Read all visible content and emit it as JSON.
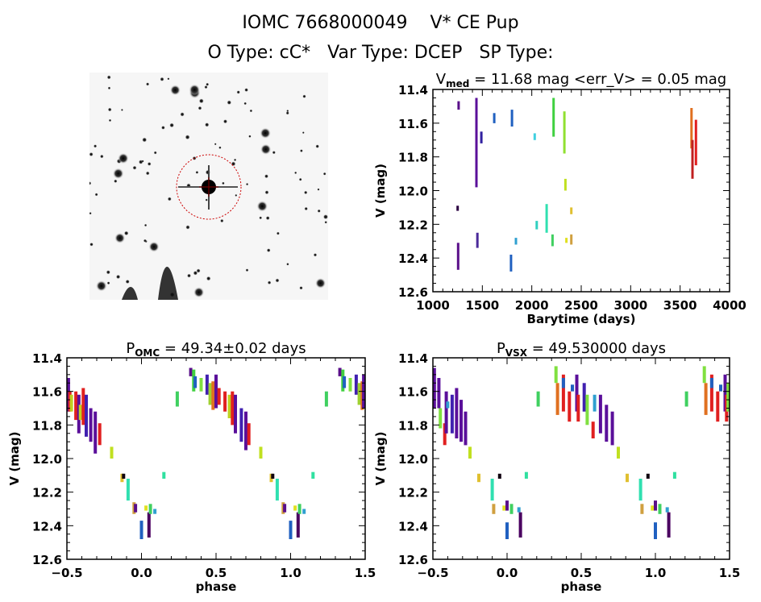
{
  "header": {
    "title": "IOMC 7668000049    V* CE Pup",
    "subtitle": "O Type: cC*   Var Type: DCEP   SP Type:"
  },
  "thumbnail": {
    "description": "inverted grayscale sky image with target circled",
    "circle_color": "#cc0000"
  },
  "chart_data": [
    {
      "type": "scatter",
      "title_main": "V",
      "title_sub": "med",
      "title_rest": " = 11.68 mag <err_V> = 0.05 mag",
      "xlabel": "Barytime (days)",
      "ylabel": "V (mag)",
      "xlim": [
        1000,
        4000
      ],
      "ylim": [
        12.6,
        11.4
      ],
      "xticks": [
        "1000",
        "1500",
        "2000",
        "2500",
        "3000",
        "3500",
        "4000"
      ],
      "yticks": [
        "11.4",
        "11.6",
        "11.8",
        "12.0",
        "12.2",
        "12.4",
        "12.6"
      ],
      "segments": [
        {
          "x": 1260,
          "y0": 11.47,
          "y1": 11.52,
          "color": "#5a0f8a"
        },
        {
          "x": 1250,
          "y0": 12.09,
          "y1": 12.12,
          "color": "#2a0040"
        },
        {
          "x": 1255,
          "y0": 12.31,
          "y1": 12.47,
          "color": "#5a0f8a"
        },
        {
          "x": 1440,
          "y0": 11.45,
          "y1": 11.98,
          "color": "#5a0f9a"
        },
        {
          "x": 1450,
          "y0": 12.25,
          "y1": 12.34,
          "color": "#4b2a9a"
        },
        {
          "x": 1490,
          "y0": 11.65,
          "y1": 11.72,
          "color": "#3020a0"
        },
        {
          "x": 1620,
          "y0": 11.54,
          "y1": 11.6,
          "color": "#2060c0"
        },
        {
          "x": 1800,
          "y0": 11.52,
          "y1": 11.62,
          "color": "#2060c0"
        },
        {
          "x": 1790,
          "y0": 12.38,
          "y1": 12.48,
          "color": "#2060c0"
        },
        {
          "x": 1840,
          "y0": 12.28,
          "y1": 12.32,
          "color": "#30a0d0"
        },
        {
          "x": 2030,
          "y0": 11.66,
          "y1": 11.7,
          "color": "#40d0e0"
        },
        {
          "x": 2050,
          "y0": 12.18,
          "y1": 12.23,
          "color": "#30d0c0"
        },
        {
          "x": 2150,
          "y0": 12.08,
          "y1": 12.25,
          "color": "#30e0b0"
        },
        {
          "x": 2220,
          "y0": 11.45,
          "y1": 11.68,
          "color": "#40d040"
        },
        {
          "x": 2210,
          "y0": 12.26,
          "y1": 12.33,
          "color": "#40d060"
        },
        {
          "x": 2330,
          "y0": 11.53,
          "y1": 11.78,
          "color": "#90e030"
        },
        {
          "x": 2340,
          "y0": 11.93,
          "y1": 12.0,
          "color": "#c0e020"
        },
        {
          "x": 2350,
          "y0": 12.28,
          "y1": 12.31,
          "color": "#e0e020"
        },
        {
          "x": 2400,
          "y0": 12.1,
          "y1": 12.14,
          "color": "#e0c030"
        },
        {
          "x": 2400,
          "y0": 12.26,
          "y1": 12.32,
          "color": "#d0a040"
        },
        {
          "x": 3615,
          "y0": 11.51,
          "y1": 11.75,
          "color": "#e07020"
        },
        {
          "x": 3625,
          "y0": 11.7,
          "y1": 11.93,
          "color": "#c02020"
        },
        {
          "x": 3660,
          "y0": 11.58,
          "y1": 11.85,
          "color": "#e02020"
        }
      ]
    },
    {
      "type": "scatter",
      "title_main": "P",
      "title_sub": "OMC",
      "title_rest": " = 49.34±0.02 days",
      "xlabel": "phase",
      "ylabel": "V (mag)",
      "xlim": [
        -0.5,
        1.5
      ],
      "ylim": [
        12.6,
        11.4
      ],
      "xticks": [
        "-0.5",
        "0.0",
        "0.5",
        "1.0",
        "1.5"
      ],
      "yticks": [
        "11.4",
        "11.6",
        "11.8",
        "12.0",
        "12.2",
        "12.4",
        "12.6"
      ],
      "segments": [
        {
          "x": -0.49,
          "y0": 11.52,
          "y1": 11.72,
          "color": "#5a0f9a"
        },
        {
          "x": -0.48,
          "y0": 11.6,
          "y1": 11.72,
          "color": "#e02020"
        },
        {
          "x": -0.47,
          "y0": 11.62,
          "y1": 11.72,
          "color": "#c0d020"
        },
        {
          "x": -0.44,
          "y0": 11.6,
          "y1": 11.77,
          "color": "#e02020"
        },
        {
          "x": -0.42,
          "y0": 11.62,
          "y1": 11.85,
          "color": "#5a0f9a"
        },
        {
          "x": -0.41,
          "y0": 11.68,
          "y1": 11.77,
          "color": "#c0d020"
        },
        {
          "x": -0.39,
          "y0": 11.58,
          "y1": 11.8,
          "color": "#e02020"
        },
        {
          "x": -0.37,
          "y0": 11.62,
          "y1": 11.87,
          "color": "#4020b0"
        },
        {
          "x": -0.34,
          "y0": 11.7,
          "y1": 11.9,
          "color": "#5a0f9a"
        },
        {
          "x": -0.31,
          "y0": 11.72,
          "y1": 11.97,
          "color": "#5a0f9a"
        },
        {
          "x": -0.28,
          "y0": 11.79,
          "y1": 11.92,
          "color": "#e02020"
        },
        {
          "x": -0.2,
          "y0": 11.93,
          "y1": 12.0,
          "color": "#c0e020"
        },
        {
          "x": -0.13,
          "y0": 12.09,
          "y1": 12.14,
          "color": "#e0c030"
        },
        {
          "x": -0.12,
          "y0": 12.09,
          "y1": 12.12,
          "color": "#100010"
        },
        {
          "x": -0.09,
          "y0": 12.12,
          "y1": 12.25,
          "color": "#30e0b0"
        },
        {
          "x": -0.05,
          "y0": 12.26,
          "y1": 12.33,
          "color": "#d0a040"
        },
        {
          "x": -0.04,
          "y0": 12.27,
          "y1": 12.32,
          "color": "#5a0f8a"
        },
        {
          "x": 0.0,
          "y0": 12.37,
          "y1": 12.48,
          "color": "#2060c0"
        },
        {
          "x": 0.03,
          "y0": 12.28,
          "y1": 12.31,
          "color": "#e0e020"
        },
        {
          "x": 0.05,
          "y0": 12.32,
          "y1": 12.47,
          "color": "#4a0060"
        },
        {
          "x": 0.06,
          "y0": 12.27,
          "y1": 12.33,
          "color": "#40d060"
        },
        {
          "x": 0.09,
          "y0": 12.3,
          "y1": 12.33,
          "color": "#30a0d0"
        },
        {
          "x": 0.15,
          "y0": 12.08,
          "y1": 12.12,
          "color": "#30e0a0"
        },
        {
          "x": 0.24,
          "y0": 11.6,
          "y1": 11.69,
          "color": "#40d060"
        },
        {
          "x": 0.33,
          "y0": 11.46,
          "y1": 11.51,
          "color": "#5a0f8a"
        },
        {
          "x": 0.35,
          "y0": 11.47,
          "y1": 11.6,
          "color": "#40d040"
        },
        {
          "x": 0.36,
          "y0": 11.51,
          "y1": 11.58,
          "color": "#2060c0"
        },
        {
          "x": 0.4,
          "y0": 11.52,
          "y1": 11.6,
          "color": "#80e040"
        },
        {
          "x": 0.44,
          "y0": 11.5,
          "y1": 11.62,
          "color": "#4020b0"
        },
        {
          "x": 0.46,
          "y0": 11.55,
          "y1": 11.68,
          "color": "#a0d030"
        },
        {
          "x": 0.48,
          "y0": 11.54,
          "y1": 11.71,
          "color": "#e07020"
        },
        {
          "x": 0.5,
          "y0": 11.5,
          "y1": 11.7,
          "color": "#5a0f9a"
        },
        {
          "x": 0.52,
          "y0": 11.58,
          "y1": 11.68,
          "color": "#e02020"
        },
        {
          "x": 0.56,
          "y0": 11.6,
          "y1": 11.72,
          "color": "#e02020"
        },
        {
          "x": 0.59,
          "y0": 11.62,
          "y1": 11.76,
          "color": "#c0d020"
        },
        {
          "x": 0.61,
          "y0": 11.6,
          "y1": 11.8,
          "color": "#e02020"
        },
        {
          "x": 0.63,
          "y0": 11.62,
          "y1": 11.85,
          "color": "#5a0f9a"
        },
        {
          "x": 0.67,
          "y0": 11.7,
          "y1": 11.9,
          "color": "#4020b0"
        },
        {
          "x": 0.7,
          "y0": 11.72,
          "y1": 11.95,
          "color": "#5a0f9a"
        },
        {
          "x": 0.72,
          "y0": 11.79,
          "y1": 11.92,
          "color": "#e02020"
        },
        {
          "x": 0.8,
          "y0": 11.93,
          "y1": 12.0,
          "color": "#c0e020"
        },
        {
          "x": 0.87,
          "y0": 12.09,
          "y1": 12.14,
          "color": "#e0c030"
        },
        {
          "x": 0.88,
          "y0": 12.09,
          "y1": 12.12,
          "color": "#100010"
        },
        {
          "x": 0.91,
          "y0": 12.12,
          "y1": 12.25,
          "color": "#30e0b0"
        },
        {
          "x": 0.95,
          "y0": 12.26,
          "y1": 12.33,
          "color": "#d0a040"
        },
        {
          "x": 0.96,
          "y0": 12.27,
          "y1": 12.32,
          "color": "#5a0f8a"
        },
        {
          "x": 1.0,
          "y0": 12.37,
          "y1": 12.48,
          "color": "#2060c0"
        },
        {
          "x": 1.03,
          "y0": 12.28,
          "y1": 12.31,
          "color": "#e0e020"
        },
        {
          "x": 1.05,
          "y0": 12.32,
          "y1": 12.47,
          "color": "#4a0060"
        },
        {
          "x": 1.06,
          "y0": 12.27,
          "y1": 12.33,
          "color": "#40d060"
        },
        {
          "x": 1.09,
          "y0": 12.3,
          "y1": 12.33,
          "color": "#30a0d0"
        },
        {
          "x": 1.15,
          "y0": 12.08,
          "y1": 12.12,
          "color": "#30e0a0"
        },
        {
          "x": 1.24,
          "y0": 11.6,
          "y1": 11.69,
          "color": "#40d060"
        },
        {
          "x": 1.33,
          "y0": 11.46,
          "y1": 11.51,
          "color": "#5a0f8a"
        },
        {
          "x": 1.35,
          "y0": 11.47,
          "y1": 11.6,
          "color": "#40d040"
        },
        {
          "x": 1.36,
          "y0": 11.51,
          "y1": 11.58,
          "color": "#2060c0"
        },
        {
          "x": 1.4,
          "y0": 11.52,
          "y1": 11.6,
          "color": "#80e040"
        },
        {
          "x": 1.44,
          "y0": 11.5,
          "y1": 11.62,
          "color": "#4020b0"
        },
        {
          "x": 1.46,
          "y0": 11.55,
          "y1": 11.68,
          "color": "#a0d030"
        },
        {
          "x": 1.48,
          "y0": 11.54,
          "y1": 11.71,
          "color": "#e07020"
        },
        {
          "x": 1.49,
          "y0": 11.5,
          "y1": 11.7,
          "color": "#5a0f9a"
        }
      ]
    },
    {
      "type": "scatter",
      "title_main": "P",
      "title_sub": "VSX",
      "title_rest": " = 49.530000 days",
      "xlabel": "phase",
      "ylabel": "V (mag)",
      "xlim": [
        -0.5,
        1.5
      ],
      "ylim": [
        12.6,
        11.4
      ],
      "xticks": [
        "-0.5",
        "0.0",
        "0.5",
        "1.0",
        "1.5"
      ],
      "yticks": [
        "11.4",
        "11.6",
        "11.8",
        "12.0",
        "12.2",
        "12.4",
        "12.6"
      ],
      "segments": [
        {
          "x": -0.49,
          "y0": 11.46,
          "y1": 11.7,
          "color": "#5a0f9a"
        },
        {
          "x": -0.46,
          "y0": 11.52,
          "y1": 11.7,
          "color": "#5a0f9a"
        },
        {
          "x": -0.45,
          "y0": 11.7,
          "y1": 11.82,
          "color": "#80e040"
        },
        {
          "x": -0.42,
          "y0": 11.79,
          "y1": 11.92,
          "color": "#e02020"
        },
        {
          "x": -0.41,
          "y0": 11.6,
          "y1": 11.85,
          "color": "#5a0f9a"
        },
        {
          "x": -0.4,
          "y0": 11.66,
          "y1": 11.7,
          "color": "#30a0d0"
        },
        {
          "x": -0.37,
          "y0": 11.62,
          "y1": 11.85,
          "color": "#4020b0"
        },
        {
          "x": -0.34,
          "y0": 11.58,
          "y1": 11.88,
          "color": "#5a0f9a"
        },
        {
          "x": -0.31,
          "y0": 11.65,
          "y1": 11.9,
          "color": "#5a0f9a"
        },
        {
          "x": -0.28,
          "y0": 11.72,
          "y1": 11.92,
          "color": "#5a0f9a"
        },
        {
          "x": -0.25,
          "y0": 11.93,
          "y1": 12.0,
          "color": "#c0e020"
        },
        {
          "x": -0.19,
          "y0": 12.09,
          "y1": 12.14,
          "color": "#e0c030"
        },
        {
          "x": -0.1,
          "y0": 12.12,
          "y1": 12.25,
          "color": "#30e0b0"
        },
        {
          "x": -0.09,
          "y0": 12.27,
          "y1": 12.33,
          "color": "#d0a040"
        },
        {
          "x": -0.05,
          "y0": 12.09,
          "y1": 12.12,
          "color": "#100010"
        },
        {
          "x": -0.02,
          "y0": 12.28,
          "y1": 12.31,
          "color": "#e0e020"
        },
        {
          "x": 0.0,
          "y0": 12.25,
          "y1": 12.31,
          "color": "#5a0f8a"
        },
        {
          "x": 0.0,
          "y0": 12.38,
          "y1": 12.48,
          "color": "#2060c0"
        },
        {
          "x": 0.03,
          "y0": 12.27,
          "y1": 12.33,
          "color": "#40d060"
        },
        {
          "x": 0.08,
          "y0": 12.29,
          "y1": 12.32,
          "color": "#30a0d0"
        },
        {
          "x": 0.09,
          "y0": 12.32,
          "y1": 12.47,
          "color": "#4a0060"
        },
        {
          "x": 0.13,
          "y0": 12.08,
          "y1": 12.12,
          "color": "#30e0a0"
        },
        {
          "x": 0.21,
          "y0": 11.6,
          "y1": 11.69,
          "color": "#40d060"
        },
        {
          "x": 0.33,
          "y0": 11.45,
          "y1": 11.55,
          "color": "#80e040"
        },
        {
          "x": 0.34,
          "y0": 11.55,
          "y1": 11.74,
          "color": "#e07020"
        },
        {
          "x": 0.38,
          "y0": 11.5,
          "y1": 11.72,
          "color": "#e02020"
        },
        {
          "x": 0.38,
          "y0": 11.52,
          "y1": 11.58,
          "color": "#2060c0"
        },
        {
          "x": 0.42,
          "y0": 11.6,
          "y1": 11.78,
          "color": "#e02020"
        },
        {
          "x": 0.44,
          "y0": 11.56,
          "y1": 11.6,
          "color": "#2060c0"
        },
        {
          "x": 0.47,
          "y0": 11.5,
          "y1": 11.72,
          "color": "#5a0f9a"
        },
        {
          "x": 0.48,
          "y0": 11.62,
          "y1": 11.78,
          "color": "#e02020"
        },
        {
          "x": 0.52,
          "y0": 11.55,
          "y1": 11.72,
          "color": "#4020b0"
        },
        {
          "x": 0.54,
          "y0": 11.62,
          "y1": 11.8,
          "color": "#80e040"
        },
        {
          "x": 0.58,
          "y0": 11.78,
          "y1": 11.88,
          "color": "#e02020"
        },
        {
          "x": 0.59,
          "y0": 11.62,
          "y1": 11.72,
          "color": "#30a0d0"
        },
        {
          "x": 0.63,
          "y0": 11.62,
          "y1": 11.85,
          "color": "#5a0f9a"
        },
        {
          "x": 0.67,
          "y0": 11.68,
          "y1": 11.9,
          "color": "#5a0f9a"
        },
        {
          "x": 0.71,
          "y0": 11.72,
          "y1": 11.92,
          "color": "#5a0f9a"
        },
        {
          "x": 0.75,
          "y0": 11.93,
          "y1": 12.0,
          "color": "#c0e020"
        },
        {
          "x": 0.81,
          "y0": 12.09,
          "y1": 12.14,
          "color": "#e0c030"
        },
        {
          "x": 0.9,
          "y0": 12.12,
          "y1": 12.25,
          "color": "#30e0b0"
        },
        {
          "x": 0.91,
          "y0": 12.27,
          "y1": 12.33,
          "color": "#d0a040"
        },
        {
          "x": 0.95,
          "y0": 12.09,
          "y1": 12.12,
          "color": "#100010"
        },
        {
          "x": 0.98,
          "y0": 12.28,
          "y1": 12.31,
          "color": "#e0e020"
        },
        {
          "x": 1.0,
          "y0": 12.25,
          "y1": 12.31,
          "color": "#5a0f8a"
        },
        {
          "x": 1.0,
          "y0": 12.38,
          "y1": 12.48,
          "color": "#2060c0"
        },
        {
          "x": 1.03,
          "y0": 12.27,
          "y1": 12.33,
          "color": "#40d060"
        },
        {
          "x": 1.08,
          "y0": 12.29,
          "y1": 12.32,
          "color": "#30a0d0"
        },
        {
          "x": 1.09,
          "y0": 12.32,
          "y1": 12.47,
          "color": "#4a0060"
        },
        {
          "x": 1.13,
          "y0": 12.08,
          "y1": 12.12,
          "color": "#30e0a0"
        },
        {
          "x": 1.21,
          "y0": 11.6,
          "y1": 11.69,
          "color": "#40d060"
        },
        {
          "x": 1.33,
          "y0": 11.45,
          "y1": 11.55,
          "color": "#80e040"
        },
        {
          "x": 1.34,
          "y0": 11.55,
          "y1": 11.74,
          "color": "#e07020"
        },
        {
          "x": 1.38,
          "y0": 11.5,
          "y1": 11.72,
          "color": "#e02020"
        },
        {
          "x": 1.38,
          "y0": 11.52,
          "y1": 11.58,
          "color": "#2060c0"
        },
        {
          "x": 1.42,
          "y0": 11.6,
          "y1": 11.78,
          "color": "#e02020"
        },
        {
          "x": 1.44,
          "y0": 11.56,
          "y1": 11.6,
          "color": "#2060c0"
        },
        {
          "x": 1.47,
          "y0": 11.5,
          "y1": 11.72,
          "color": "#5a0f9a"
        },
        {
          "x": 1.48,
          "y0": 11.62,
          "y1": 11.78,
          "color": "#e02020"
        },
        {
          "x": 1.49,
          "y0": 11.55,
          "y1": 11.72,
          "color": "#80e040"
        }
      ]
    }
  ]
}
